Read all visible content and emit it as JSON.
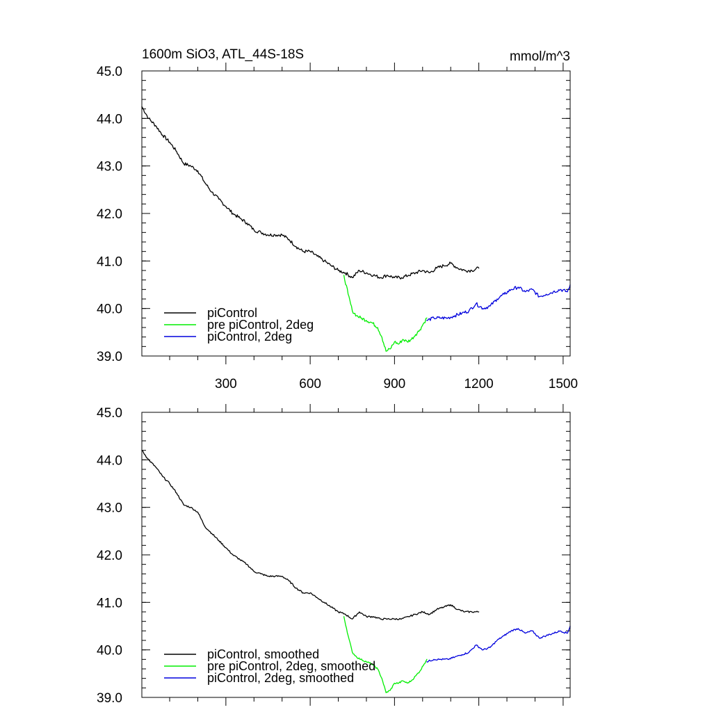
{
  "colors": {
    "piControl": "#000000",
    "pre_piControl_2deg": "#00ee00",
    "piControl_2deg": "#0000dd"
  },
  "chart_data": [
    {
      "type": "line",
      "title": "1600m SiO3, ATL_44S-18S",
      "units": "mmol/m^3",
      "xlim": [
        1,
        1525
      ],
      "ylim": [
        39.0,
        45.0
      ],
      "x_ticks": [
        300,
        600,
        900,
        1200,
        1500
      ],
      "x_tick_labels": [
        "300",
        "600",
        "900",
        "1200",
        "1500"
      ],
      "y_ticks": [
        39.0,
        40.0,
        41.0,
        42.0,
        43.0,
        44.0,
        45.0
      ],
      "y_tick_labels": [
        "39.0",
        "40.0",
        "41.0",
        "42.0",
        "43.0",
        "44.0",
        "45.0"
      ],
      "legend_position": "bottom-left",
      "series": [
        {
          "name": "piControl",
          "color_key": "piControl",
          "x": [
            1,
            25,
            50,
            75,
            100,
            125,
            150,
            175,
            200,
            225,
            250,
            275,
            300,
            325,
            350,
            375,
            400,
            425,
            450,
            475,
            500,
            525,
            550,
            575,
            600,
            625,
            650,
            675,
            700,
            725,
            750,
            775,
            800,
            825,
            850,
            875,
            900,
            925,
            950,
            975,
            1000,
            1025,
            1050,
            1075,
            1100,
            1125,
            1150,
            1175,
            1200
          ],
          "values": [
            44.25,
            44.0,
            43.85,
            43.65,
            43.5,
            43.3,
            43.05,
            43.0,
            42.9,
            42.65,
            42.45,
            42.3,
            42.15,
            42.0,
            41.9,
            41.8,
            41.65,
            41.6,
            41.55,
            41.55,
            41.55,
            41.45,
            41.3,
            41.2,
            41.2,
            41.1,
            41.0,
            40.9,
            40.8,
            40.75,
            40.65,
            40.8,
            40.75,
            40.7,
            40.65,
            40.7,
            40.65,
            40.65,
            40.7,
            40.75,
            40.8,
            40.75,
            40.85,
            40.9,
            40.95,
            40.85,
            40.8,
            40.8,
            40.85
          ]
        },
        {
          "name": "pre piControl, 2deg",
          "color_key": "pre_piControl_2deg",
          "x": [
            720,
            735,
            750,
            765,
            780,
            800,
            820,
            840,
            855,
            870,
            885,
            900,
            915,
            930,
            945,
            960,
            975,
            990,
            1005,
            1015
          ],
          "values": [
            40.7,
            40.3,
            39.95,
            39.85,
            39.8,
            39.75,
            39.7,
            39.6,
            39.4,
            39.1,
            39.15,
            39.3,
            39.25,
            39.35,
            39.3,
            39.35,
            39.45,
            39.55,
            39.7,
            39.8
          ]
        },
        {
          "name": "piControl, 2deg",
          "color_key": "piControl_2deg",
          "x": [
            1015,
            1040,
            1065,
            1090,
            1115,
            1140,
            1165,
            1190,
            1215,
            1240,
            1265,
            1290,
            1315,
            1340,
            1365,
            1390,
            1415,
            1440,
            1465,
            1490,
            1515,
            1525
          ],
          "values": [
            39.75,
            39.8,
            39.8,
            39.8,
            39.85,
            39.9,
            39.95,
            40.1,
            40.0,
            40.05,
            40.2,
            40.3,
            40.4,
            40.45,
            40.35,
            40.4,
            40.25,
            40.3,
            40.35,
            40.4,
            40.35,
            40.5
          ]
        }
      ]
    },
    {
      "type": "line",
      "xlim": [
        1,
        1525
      ],
      "ylim": [
        39.0,
        45.0
      ],
      "y_ticks": [
        39.0,
        40.0,
        41.0,
        42.0,
        43.0,
        44.0,
        45.0
      ],
      "y_tick_labels": [
        "39.0",
        "40.0",
        "41.0",
        "42.0",
        "43.0",
        "44.0",
        "45.0"
      ],
      "legend_position": "bottom-left",
      "series": [
        {
          "name": "piControl, smoothed",
          "color_key": "piControl",
          "x": [
            1,
            25,
            50,
            75,
            100,
            125,
            150,
            175,
            200,
            225,
            250,
            275,
            300,
            325,
            350,
            375,
            400,
            425,
            450,
            475,
            500,
            525,
            550,
            575,
            600,
            625,
            650,
            675,
            700,
            725,
            750,
            775,
            800,
            825,
            850,
            875,
            900,
            925,
            950,
            975,
            1000,
            1025,
            1050,
            1075,
            1100,
            1125,
            1150,
            1175,
            1200
          ],
          "values": [
            44.2,
            44.0,
            43.85,
            43.65,
            43.5,
            43.3,
            43.05,
            43.0,
            42.9,
            42.6,
            42.45,
            42.3,
            42.15,
            42.0,
            41.9,
            41.8,
            41.65,
            41.6,
            41.55,
            41.55,
            41.55,
            41.45,
            41.3,
            41.2,
            41.2,
            41.1,
            41.0,
            40.9,
            40.8,
            40.75,
            40.65,
            40.8,
            40.7,
            40.7,
            40.65,
            40.65,
            40.65,
            40.65,
            40.7,
            40.75,
            40.8,
            40.75,
            40.85,
            40.9,
            40.95,
            40.85,
            40.8,
            40.8,
            40.8
          ]
        },
        {
          "name": "pre piControl, 2deg, smoothed",
          "color_key": "pre_piControl_2deg",
          "x": [
            720,
            735,
            750,
            765,
            780,
            800,
            820,
            840,
            855,
            870,
            885,
            900,
            915,
            930,
            945,
            960,
            975,
            990,
            1005,
            1015
          ],
          "values": [
            40.7,
            40.3,
            39.95,
            39.85,
            39.8,
            39.75,
            39.7,
            39.6,
            39.4,
            39.1,
            39.15,
            39.3,
            39.3,
            39.35,
            39.3,
            39.35,
            39.45,
            39.55,
            39.7,
            39.8
          ]
        },
        {
          "name": "piControl, 2deg, smoothed",
          "color_key": "piControl_2deg",
          "x": [
            1015,
            1040,
            1065,
            1090,
            1115,
            1140,
            1165,
            1190,
            1215,
            1240,
            1265,
            1290,
            1315,
            1340,
            1365,
            1390,
            1415,
            1440,
            1465,
            1490,
            1515,
            1525
          ],
          "values": [
            39.75,
            39.8,
            39.8,
            39.8,
            39.85,
            39.9,
            39.95,
            40.1,
            40.0,
            40.05,
            40.2,
            40.3,
            40.4,
            40.45,
            40.35,
            40.4,
            40.25,
            40.3,
            40.35,
            40.4,
            40.35,
            40.5
          ]
        }
      ]
    }
  ]
}
